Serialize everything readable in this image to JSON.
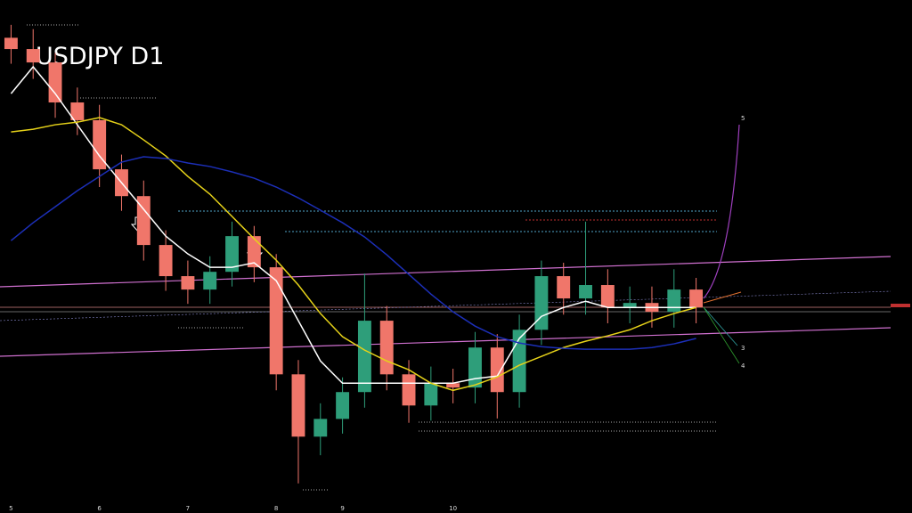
{
  "chart_data": {
    "type": "candlestick",
    "title": "USDJPY D1",
    "categories": [
      "5",
      null,
      null,
      null,
      "6",
      null,
      null,
      null,
      "7",
      null,
      null,
      null,
      "8",
      null,
      null,
      "9",
      null,
      null,
      null,
      null,
      "10",
      null,
      null,
      null,
      null,
      null,
      null,
      null,
      null,
      null,
      null,
      null
    ],
    "open": [
      160.9,
      160.38,
      159.76,
      157.91,
      157.09,
      154.82,
      153.58,
      151.32,
      149.88,
      149.26,
      150.08,
      151.73,
      150.29,
      145.34,
      142.46,
      143.28,
      144.52,
      147.82,
      145.34,
      143.9,
      144.93,
      144.73,
      146.58,
      144.52,
      147.4,
      149.88,
      148.85,
      149.47,
      148.44,
      148.64,
      148.23,
      149.26
    ],
    "high": [
      161.5,
      161.3,
      160.2,
      158.6,
      157.8,
      155.5,
      154.3,
      152.0,
      150.6,
      150.8,
      152.4,
      152.2,
      150.9,
      146.0,
      144.0,
      145.2,
      150.0,
      148.5,
      146.0,
      145.7,
      145.6,
      147.3,
      147.2,
      148.1,
      150.6,
      150.5,
      152.4,
      150.2,
      149.4,
      149.4,
      150.2,
      149.8
    ],
    "low": [
      159.7,
      159.0,
      157.2,
      156.4,
      154.0,
      152.9,
      150.6,
      149.2,
      148.6,
      148.6,
      149.4,
      149.6,
      144.6,
      140.3,
      141.6,
      142.6,
      143.8,
      144.6,
      143.1,
      143.2,
      144.0,
      144.0,
      143.3,
      143.8,
      146.7,
      148.1,
      148.1,
      147.7,
      147.7,
      147.5,
      147.5,
      147.7
    ],
    "close": [
      160.38,
      159.76,
      157.91,
      157.09,
      154.82,
      153.58,
      151.32,
      149.88,
      149.26,
      150.08,
      151.73,
      150.29,
      145.34,
      142.46,
      143.28,
      144.52,
      147.82,
      145.34,
      143.9,
      144.93,
      144.73,
      146.58,
      144.52,
      147.4,
      149.88,
      148.85,
      149.47,
      148.44,
      148.64,
      148.23,
      149.26,
      148.44
    ],
    "up_color": "#2e9e7a",
    "down_color": "#f0766a",
    "series": [
      {
        "color": "#ffffff",
        "values": [
          158.32,
          159.56,
          158.32,
          156.88,
          155.44,
          154.2,
          152.97,
          151.73,
          150.91,
          150.29,
          150.29,
          150.5,
          149.67,
          147.82,
          145.96,
          144.93,
          144.93,
          144.93,
          144.93,
          144.93,
          144.93,
          145.14,
          145.26,
          147.0,
          148.02,
          148.43,
          148.72,
          148.43,
          148.43,
          148.43,
          148.43,
          148.43
        ]
      },
      {
        "color": "#e6d219",
        "values": [
          156.55,
          156.67,
          156.88,
          157.0,
          157.21,
          156.88,
          156.18,
          155.44,
          154.49,
          153.67,
          152.64,
          151.61,
          150.62,
          149.47,
          148.15,
          147.08,
          146.46,
          145.96,
          145.55,
          144.93,
          144.6,
          144.85,
          145.22,
          145.76,
          146.17,
          146.58,
          146.87,
          147.12,
          147.4,
          147.82,
          148.15,
          148.43
        ]
      },
      {
        "color": "#1c2fb8",
        "values": [
          151.52,
          152.35,
          153.09,
          153.83,
          154.49,
          155.15,
          155.4,
          155.32,
          155.11,
          154.95,
          154.7,
          154.41,
          154.0,
          153.5,
          152.93,
          152.35,
          151.69,
          150.87,
          149.96,
          149.05,
          148.23,
          147.57,
          147.08,
          146.79,
          146.62,
          146.54,
          146.5,
          146.5,
          146.5,
          146.58,
          146.75,
          147.0
        ]
      }
    ],
    "annotations": [
      "5",
      "3",
      "4"
    ],
    "ylim": [
      140,
      161
    ]
  }
}
